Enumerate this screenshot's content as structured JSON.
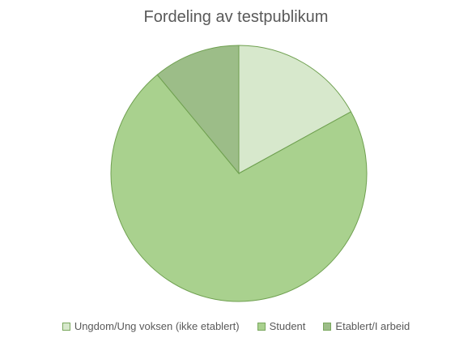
{
  "chart_data": {
    "type": "pie",
    "title": "Fordeling av testpublikum",
    "categories": [
      "Ungdom/Ung voksen (ikke etablert)",
      "Student",
      "Etablert/I arbeid"
    ],
    "values": [
      17,
      72,
      11
    ],
    "colors": [
      "#d7e8cc",
      "#a9d18e",
      "#9cbd88"
    ],
    "edge_color": "#6fa050",
    "legend_position": "bottom"
  }
}
